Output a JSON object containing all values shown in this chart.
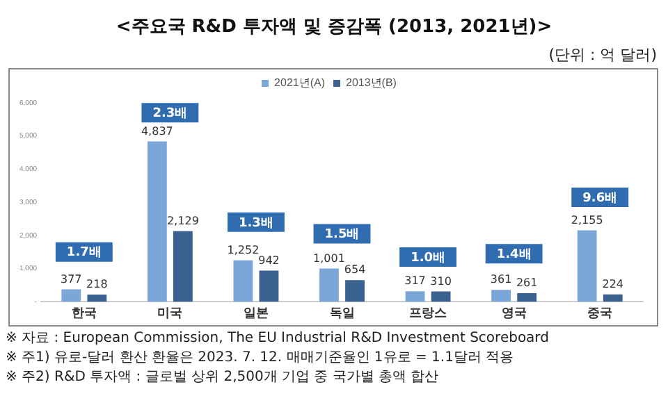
{
  "chart_data": {
    "type": "bar",
    "title": "<주요국 R&D 투자액 및 증감폭 (2013, 2021년)>",
    "subtitle": "(단위 : 억 달러)",
    "categories": [
      "한국",
      "미국",
      "일본",
      "독일",
      "프랑스",
      "영국",
      "중국"
    ],
    "series": [
      {
        "name": "2021년(A)",
        "color": "#7ba7d8",
        "values": [
          377,
          4837,
          1252,
          1001,
          317,
          361,
          2155
        ],
        "value_labels": [
          "377",
          "4,837",
          "1,252",
          "1,001",
          "317",
          "361",
          "2,155"
        ]
      },
      {
        "name": "2013년(B)",
        "color": "#3b6190",
        "values": [
          218,
          2129,
          942,
          654,
          310,
          261,
          224
        ],
        "value_labels": [
          "218",
          "2,129",
          "942",
          "654",
          "310",
          "261",
          "224"
        ]
      }
    ],
    "ylim": [
      0,
      6000
    ],
    "yticks": [
      {
        "value": 0,
        "label": "-"
      },
      {
        "value": 1000,
        "label": "1,000"
      },
      {
        "value": 2000,
        "label": "2,000"
      },
      {
        "value": 3000,
        "label": "3,000"
      },
      {
        "value": 4000,
        "label": "4,000"
      },
      {
        "value": 5000,
        "label": "5,000"
      },
      {
        "value": 6000,
        "label": "6,000"
      }
    ],
    "grid": false,
    "legend": "top",
    "annotations": [
      {
        "text": "1.7배",
        "x": "한국",
        "y": 1500
      },
      {
        "text": "2.3배",
        "x": "미국",
        "y": 5700
      },
      {
        "text": "1.3배",
        "x": "일본",
        "y": 2400
      },
      {
        "text": "1.5배",
        "x": "독일",
        "y": 2050
      },
      {
        "text": "1.0배",
        "x": "프랑스",
        "y": 1350
      },
      {
        "text": "1.4배",
        "x": "영국",
        "y": 1450
      },
      {
        "text": "9.6배",
        "x": "중국",
        "y": 3150
      },
      "※ 자료 : European Commission, The EU Industrial R&D Investment Scoreboard",
      "※ 주1) 유로-달러 환산 환율은 2023. 7. 12. 매매기준율인 1유로 = 1.1달러 적용",
      "※ 주2) R&D 투자액 : 글로벌 상위 2,500개 기업 중 국가별 총액 합산"
    ]
  }
}
